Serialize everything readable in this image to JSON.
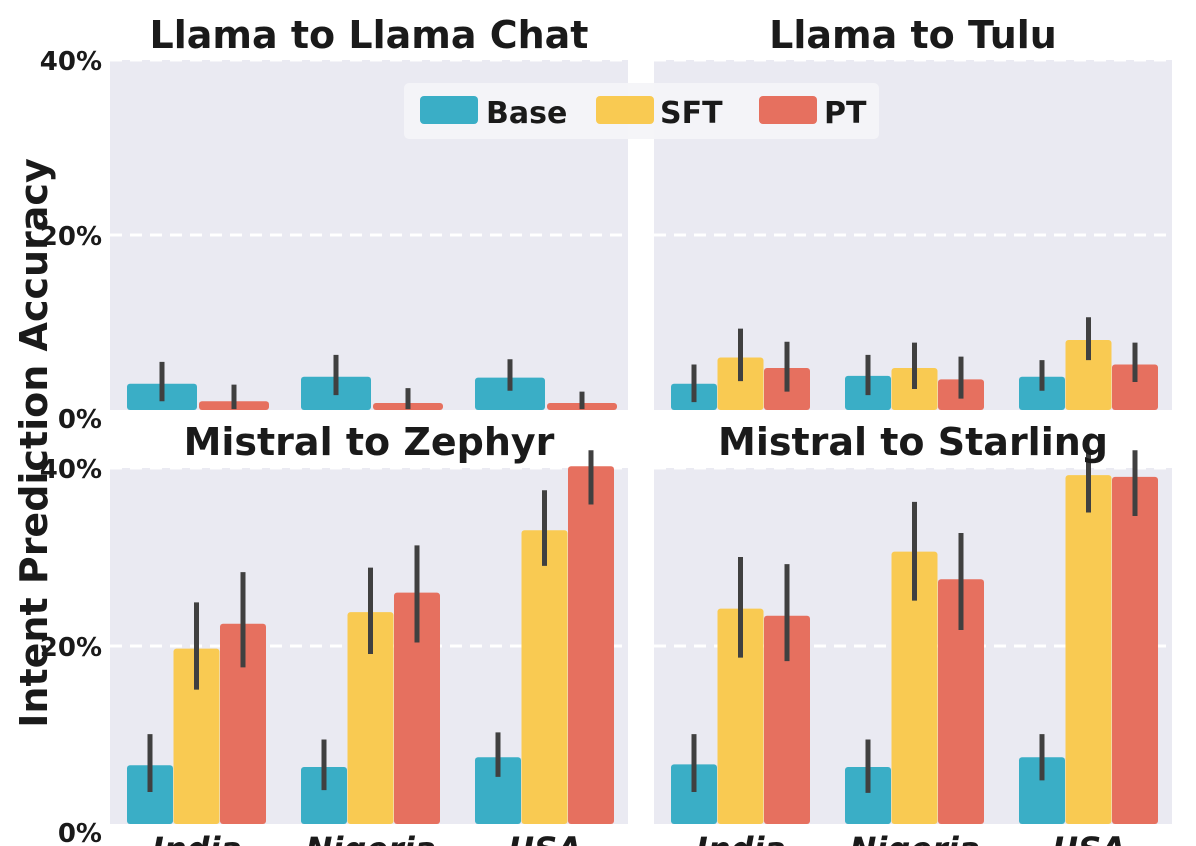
{
  "colors": {
    "Base": "#3aaec6",
    "SFT": "#f9ca52",
    "PT": "#e6705f",
    "panel_bg": "#eaeaf2",
    "grid": "#ffffff",
    "errorbar": "#404040"
  },
  "figure": {
    "ylabel": "Intent Prediction Accuracy",
    "legend": [
      "Base",
      "SFT",
      "PT"
    ],
    "legend_position": "top-center"
  },
  "chart_data": [
    {
      "type": "bar",
      "title": "Llama to Llama Chat",
      "categories": [
        "India",
        "Nigeria",
        "USA"
      ],
      "ylim": [
        0,
        40
      ],
      "yticks": [
        "0%",
        "20%",
        "40%"
      ],
      "series": [
        {
          "name": "Base",
          "values": [
            3.0,
            3.8,
            3.7
          ],
          "err_low": [
            1.0,
            1.7,
            2.2
          ],
          "err_high": [
            5.5,
            6.3,
            5.8
          ]
        },
        {
          "name": "PT",
          "values": [
            1.0,
            0.8,
            0.8
          ],
          "err_low": [
            0.1,
            0.1,
            0.1
          ],
          "err_high": [
            2.9,
            2.5,
            2.1
          ]
        }
      ]
    },
    {
      "type": "bar",
      "title": "Llama to Tulu",
      "categories": [
        "India",
        "Nigeria",
        "USA"
      ],
      "ylim": [
        0,
        40
      ],
      "yticks": [
        "0%",
        "20%",
        "40%"
      ],
      "series": [
        {
          "name": "Base",
          "values": [
            3.0,
            3.9,
            3.8
          ],
          "err_low": [
            0.9,
            1.7,
            2.2
          ],
          "err_high": [
            5.2,
            6.3,
            5.7
          ]
        },
        {
          "name": "SFT",
          "values": [
            6.0,
            4.8,
            8.0
          ],
          "err_low": [
            3.3,
            2.4,
            5.7
          ],
          "err_high": [
            9.3,
            7.7,
            10.6
          ]
        },
        {
          "name": "PT",
          "values": [
            4.8,
            3.5,
            5.2
          ],
          "err_low": [
            2.1,
            1.3,
            3.2
          ],
          "err_high": [
            7.8,
            6.1,
            7.7
          ]
        }
      ]
    },
    {
      "type": "bar",
      "title": "Mistral to Zephyr",
      "categories": [
        "India",
        "Nigeria",
        "USA"
      ],
      "ylim": [
        0,
        40
      ],
      "yticks": [
        "0%",
        "20%",
        "40%"
      ],
      "series": [
        {
          "name": "Base",
          "values": [
            6.6,
            6.4,
            7.5
          ],
          "err_low": [
            3.6,
            3.8,
            5.3
          ],
          "err_high": [
            10.1,
            9.5,
            10.3
          ]
        },
        {
          "name": "SFT",
          "values": [
            19.7,
            23.8,
            33.0
          ],
          "err_low": [
            15.1,
            19.1,
            29.0
          ],
          "err_high": [
            24.9,
            28.8,
            37.5
          ]
        },
        {
          "name": "PT",
          "values": [
            22.5,
            26.0,
            40.2
          ],
          "err_low": [
            17.6,
            20.4,
            35.9
          ],
          "err_high": [
            28.3,
            31.3,
            44.2
          ]
        }
      ]
    },
    {
      "type": "bar",
      "title": "Mistral to Starling",
      "categories": [
        "India",
        "Nigeria",
        "USA"
      ],
      "ylim": [
        0,
        40
      ],
      "yticks": [
        "0%",
        "20%",
        "40%"
      ],
      "series": [
        {
          "name": "Base",
          "values": [
            6.7,
            6.4,
            7.5
          ],
          "err_low": [
            3.6,
            3.5,
            4.9
          ],
          "err_high": [
            10.1,
            9.5,
            10.1
          ]
        },
        {
          "name": "SFT",
          "values": [
            24.2,
            30.6,
            39.2
          ],
          "err_low": [
            18.7,
            25.1,
            35.0
          ],
          "err_high": [
            30.0,
            36.2,
            43.7
          ]
        },
        {
          "name": "PT",
          "values": [
            23.4,
            27.5,
            39.0
          ],
          "err_low": [
            18.3,
            21.8,
            34.6
          ],
          "err_high": [
            29.2,
            32.7,
            43.7
          ]
        }
      ]
    }
  ]
}
